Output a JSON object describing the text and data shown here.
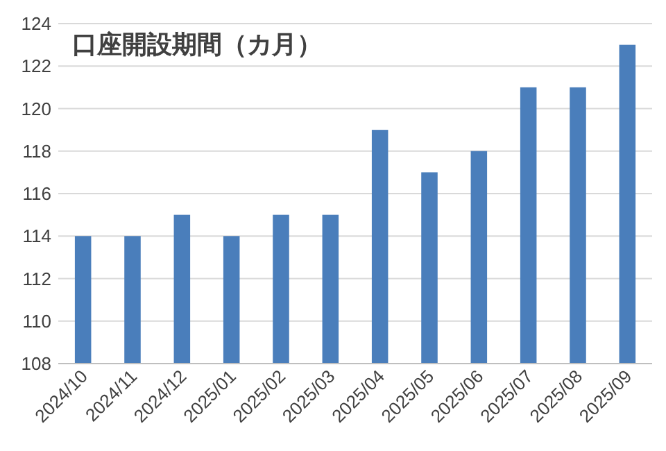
{
  "chart_data": {
    "type": "bar",
    "title": "口座開設期間（カ月）",
    "categories": [
      "2024/10",
      "2024/11",
      "2024/12",
      "2025/01",
      "2025/02",
      "2025/03",
      "2025/04",
      "2025/05",
      "2025/06",
      "2025/07",
      "2025/08",
      "2025/09"
    ],
    "values": [
      114,
      114,
      115,
      114,
      115,
      115,
      119,
      117,
      118,
      121,
      121,
      123
    ],
    "color": "#4a7ebb",
    "ylim": [
      108,
      124
    ],
    "yticks": [
      108,
      110,
      112,
      114,
      116,
      118,
      120,
      122,
      124
    ],
    "grid": "y"
  }
}
